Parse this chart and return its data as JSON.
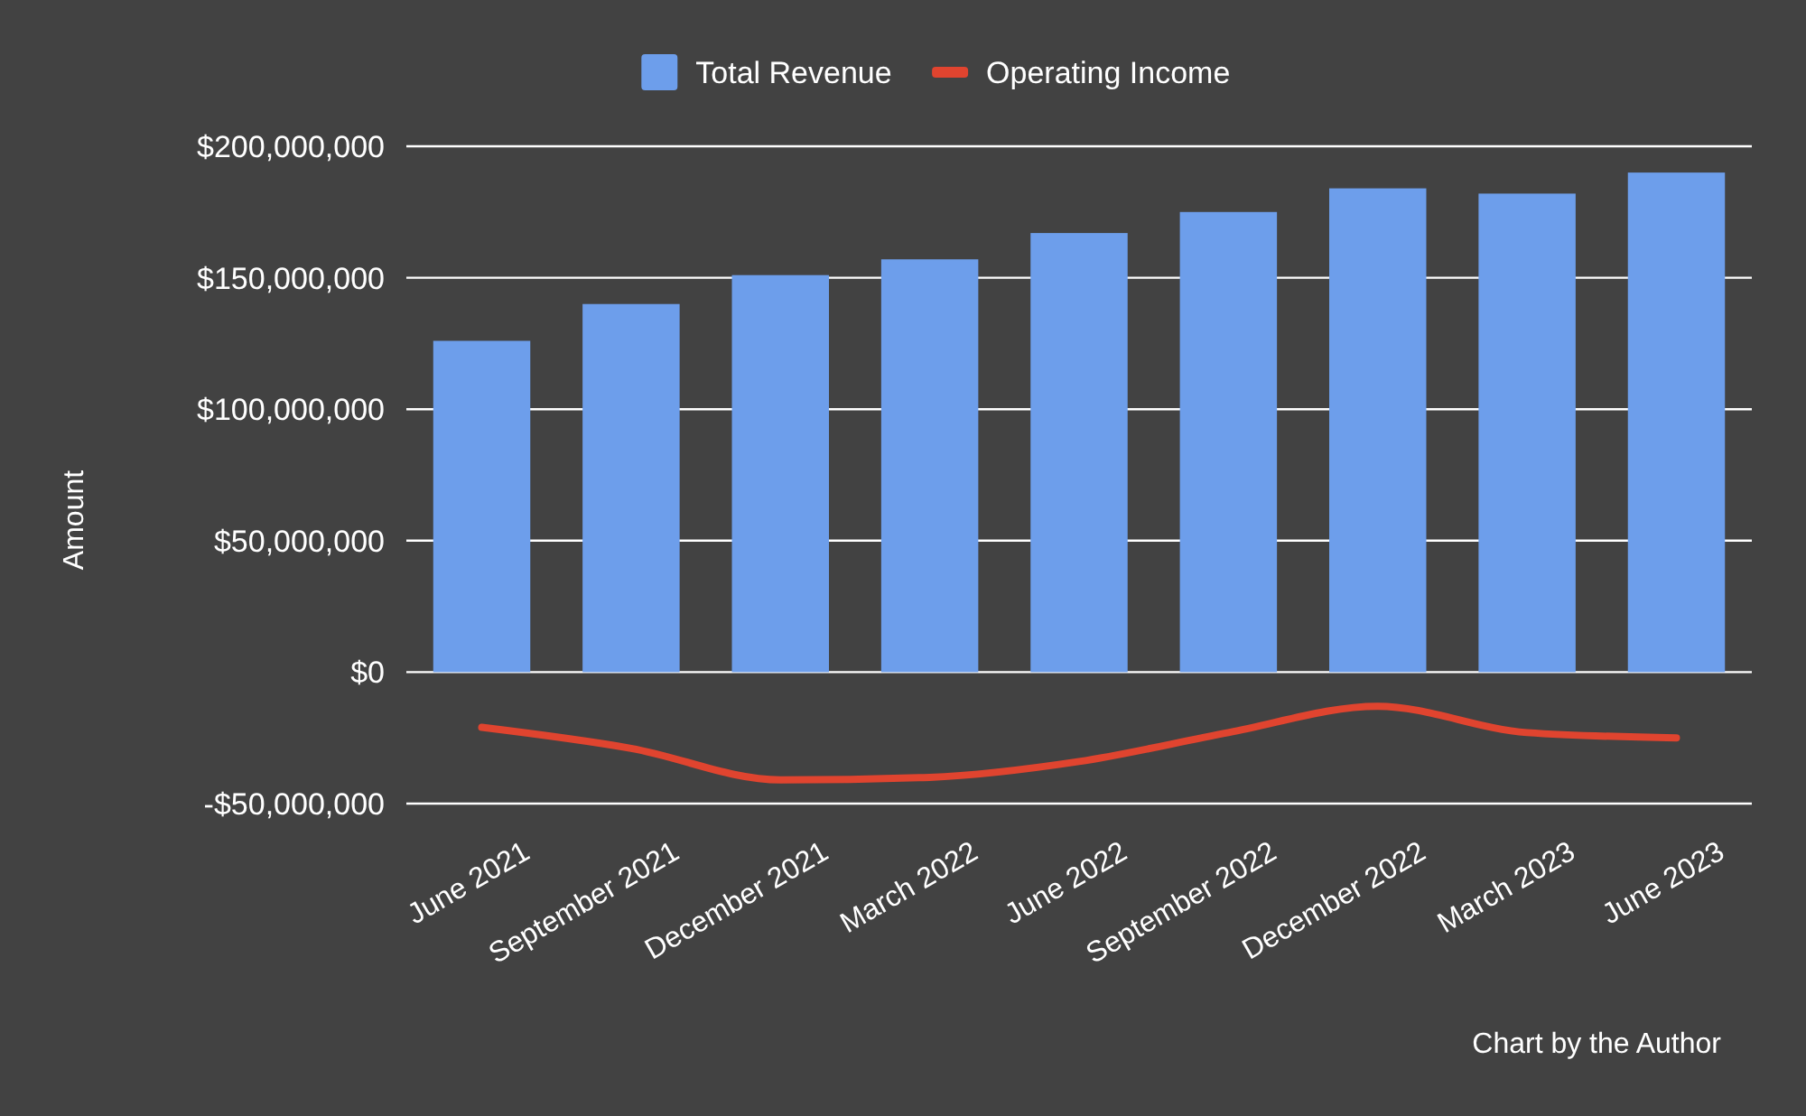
{
  "chart_data": {
    "type": "bar",
    "ylabel": "Amount",
    "categories": [
      "June 2021",
      "September 2021",
      "December 2021",
      "March 2022",
      "June 2022",
      "September 2022",
      "December 2022",
      "March 2023",
      "June 2023"
    ],
    "series": [
      {
        "name": "Total Revenue",
        "color": "#6d9eeb",
        "values": [
          126000000,
          140000000,
          151000000,
          157000000,
          167000000,
          175000000,
          184000000,
          182000000,
          190000000
        ]
      },
      {
        "name": "Operating Income",
        "type": "line",
        "color": "#e0442f",
        "values": [
          -21000000,
          -29000000,
          -41000000,
          -40000000,
          -34000000,
          -23000000,
          -13000000,
          -23000000,
          -25000000
        ]
      }
    ],
    "ylim": [
      -50000000,
      200000000
    ],
    "yticks": [
      {
        "value": -50000000,
        "label": "-$50,000,000"
      },
      {
        "value": 0,
        "label": "$0"
      },
      {
        "value": 50000000,
        "label": "$50,000,000"
      },
      {
        "value": 100000000,
        "label": "$100,000,000"
      },
      {
        "value": 150000000,
        "label": "$150,000,000"
      },
      {
        "value": 200000000,
        "label": "$200,000,000"
      }
    ],
    "grid": "y",
    "legend": "top",
    "marker": "none",
    "annotations": [
      "Chart by the Author"
    ]
  }
}
